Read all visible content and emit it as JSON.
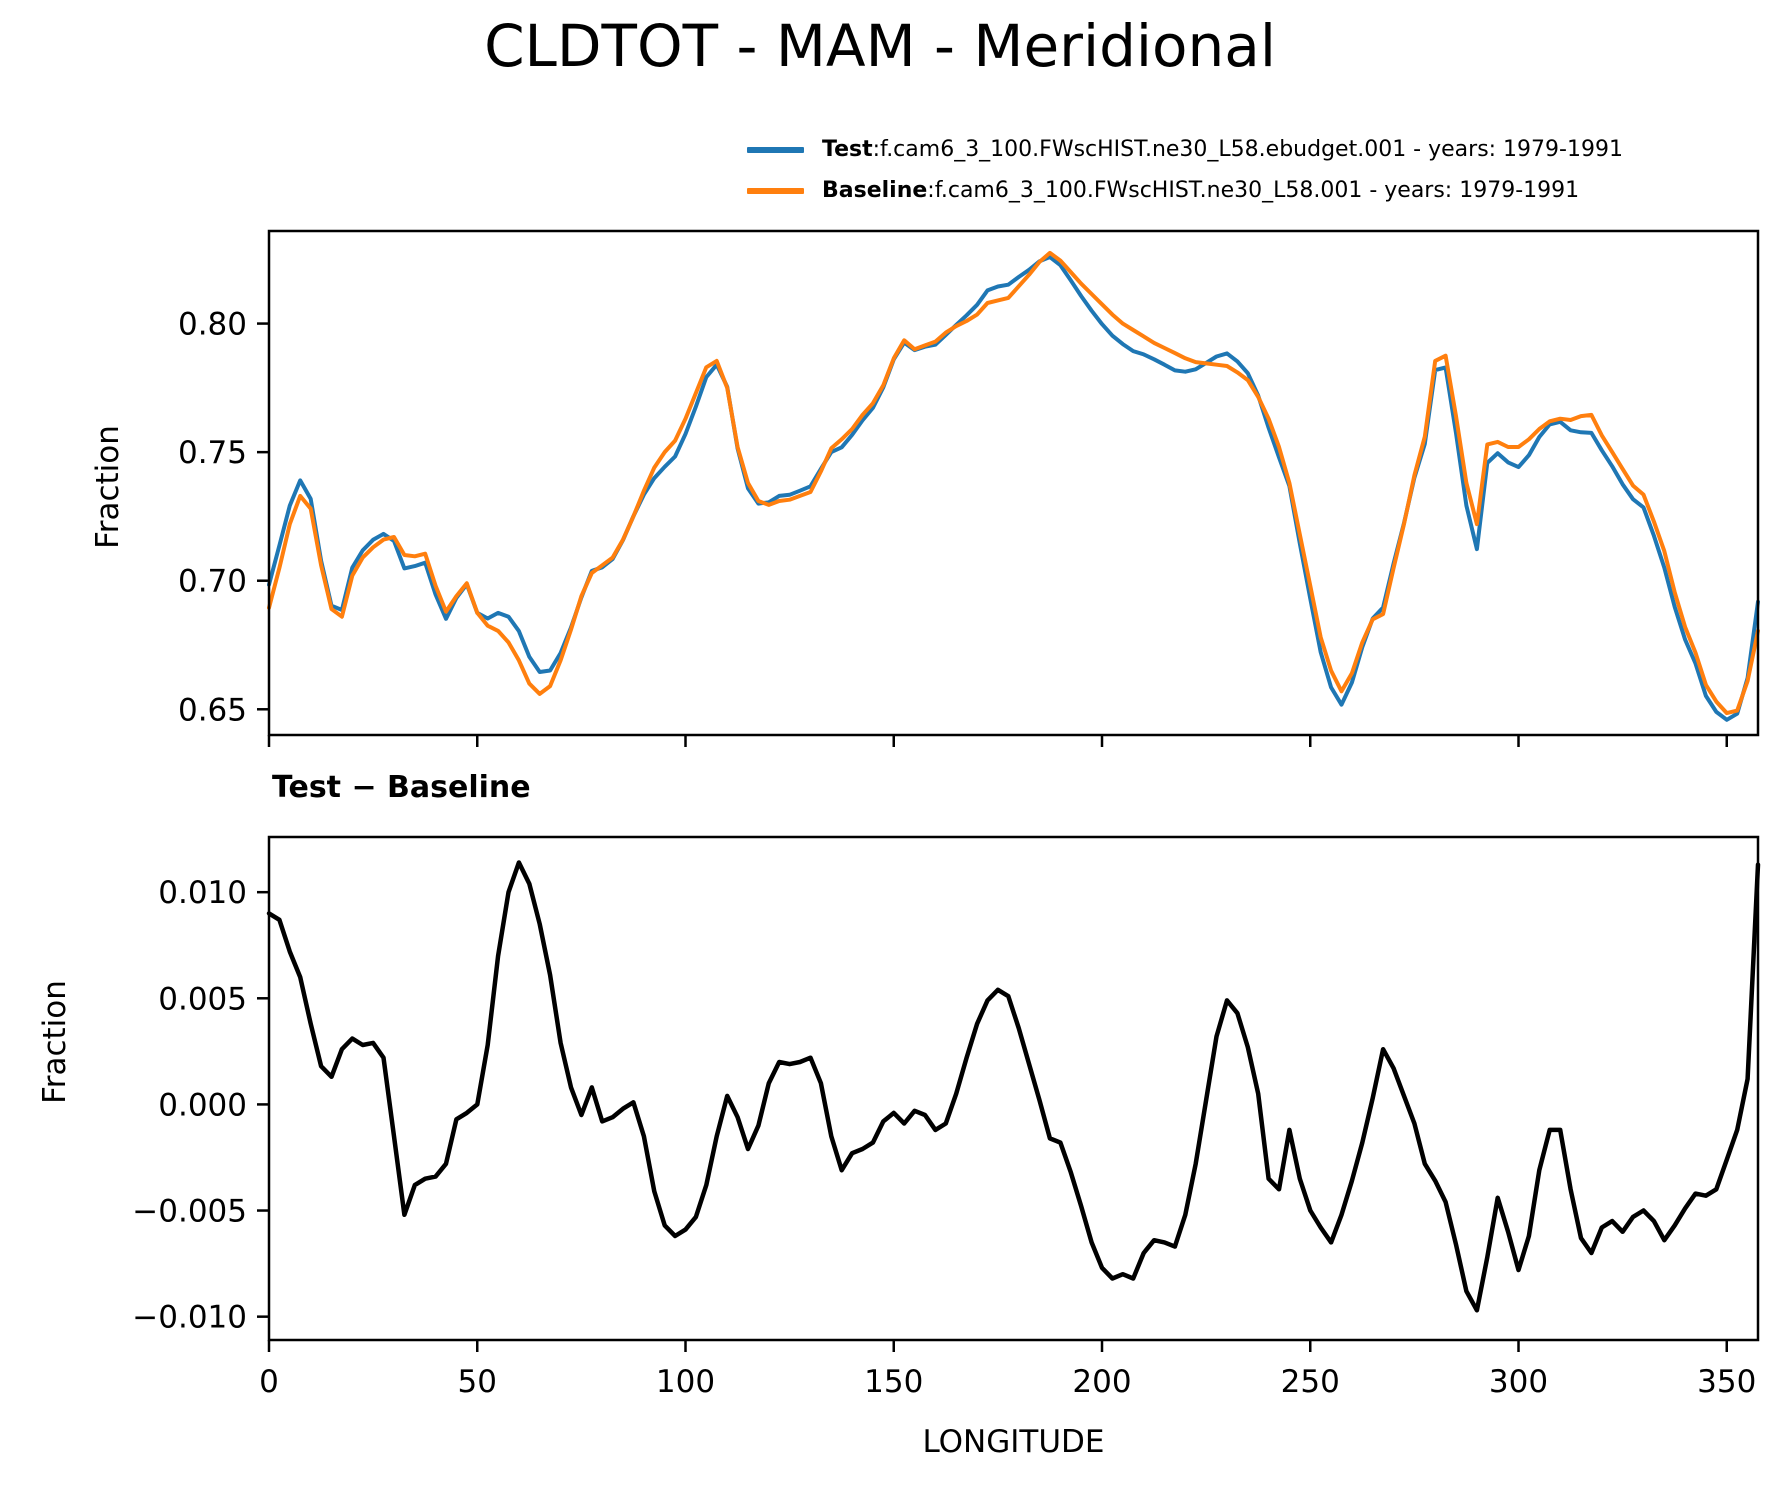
{
  "title": "CLDTOT - MAM - Meridional",
  "subtitle": "Test − Baseline",
  "legend": {
    "items": [
      {
        "label": "Test",
        "sep": " : ",
        "desc": "f.cam6_3_100.FWscHIST.ne30_L58.ebudget.001 - years: 1979-1991",
        "color": "#1f77b4"
      },
      {
        "label": "Baseline",
        "sep": " : ",
        "desc": "f.cam6_3_100.FWscHIST.ne30_L58.001 - years: 1979-1991",
        "color": "#ff7f0e"
      }
    ]
  },
  "colors": {
    "test": "#1f77b4",
    "baseline": "#ff7f0e",
    "difference": "#000000",
    "frame": "#000000"
  },
  "chart_data": [
    {
      "type": "line",
      "title": "CLDTOT - MAM - Meridional",
      "xlabel": "",
      "ylabel": "Fraction",
      "grid": false,
      "legend_position": "above-top-right",
      "xlim": [
        0,
        357.5
      ],
      "ylim": [
        0.64,
        0.836
      ],
      "xticks": [
        0,
        50,
        100,
        150,
        200,
        250,
        300,
        350
      ],
      "xtick_labels": [],
      "yticks": [
        0.65,
        0.7,
        0.75,
        0.8
      ],
      "ytick_labels": [
        "0.65",
        "0.70",
        "0.75",
        "0.80"
      ],
      "x": [
        0,
        2.5,
        5,
        7.5,
        10,
        12.5,
        15,
        17.5,
        20,
        22.5,
        25,
        27.5,
        30,
        32.5,
        35,
        37.5,
        40,
        42.5,
        45,
        47.5,
        50,
        52.5,
        55,
        57.5,
        60,
        62.5,
        65,
        67.5,
        70,
        72.5,
        75,
        77.5,
        80,
        82.5,
        85,
        87.5,
        90,
        92.5,
        95,
        97.5,
        100,
        102.5,
        105,
        107.5,
        110,
        112.5,
        115,
        117.5,
        120,
        122.5,
        125,
        127.5,
        130,
        132.5,
        135,
        137.5,
        140,
        142.5,
        145,
        147.5,
        150,
        152.5,
        155,
        157.5,
        160,
        162.5,
        165,
        167.5,
        170,
        172.5,
        175,
        177.5,
        180,
        182.5,
        185,
        187.5,
        190,
        192.5,
        195,
        197.5,
        200,
        202.5,
        205,
        207.5,
        210,
        212.5,
        215,
        217.5,
        220,
        222.5,
        225,
        227.5,
        230,
        232.5,
        235,
        237.5,
        240,
        242.5,
        245,
        247.5,
        250,
        252.5,
        255,
        257.5,
        260,
        262.5,
        265,
        267.5,
        270,
        272.5,
        275,
        277.5,
        280,
        282.5,
        285,
        287.5,
        290,
        292.5,
        295,
        297.5,
        300,
        302.5,
        305,
        307.5,
        310,
        312.5,
        315,
        317.5,
        320,
        322.5,
        325,
        327.5,
        330,
        332.5,
        335,
        337.5,
        340,
        342.5,
        345,
        347.5,
        350,
        352.5,
        355,
        357.5
      ],
      "series": [
        {
          "name": "Test",
          "color": "#1f77b4",
          "values": [
            0.6985,
            0.7137,
            0.7292,
            0.739,
            0.7318,
            0.7078,
            0.6903,
            0.6886,
            0.7051,
            0.7118,
            0.7159,
            0.7182,
            0.7155,
            0.7048,
            0.7057,
            0.707,
            0.6946,
            0.6852,
            0.6933,
            0.6986,
            0.6875,
            0.6853,
            0.6875,
            0.686,
            0.6804,
            0.6704,
            0.6645,
            0.6651,
            0.6719,
            0.6818,
            0.6935,
            0.7038,
            0.7052,
            0.7084,
            0.7158,
            0.7251,
            0.7335,
            0.7399,
            0.7443,
            0.7483,
            0.7571,
            0.7677,
            0.7792,
            0.784,
            0.7754,
            0.7514,
            0.7359,
            0.73,
            0.7305,
            0.733,
            0.7334,
            0.735,
            0.7367,
            0.7435,
            0.75,
            0.7519,
            0.7567,
            0.7624,
            0.7672,
            0.7752,
            0.7861,
            0.7926,
            0.7897,
            0.791,
            0.7918,
            0.7956,
            0.7995,
            0.8032,
            0.8073,
            0.8129,
            0.8144,
            0.8151,
            0.8181,
            0.8209,
            0.8242,
            0.8259,
            0.8227,
            0.8168,
            0.8107,
            0.805,
            0.7998,
            0.7953,
            0.792,
            0.7893,
            0.788,
            0.7861,
            0.784,
            0.7818,
            0.7813,
            0.7822,
            0.7847,
            0.7872,
            0.7884,
            0.7853,
            0.7807,
            0.772,
            0.7595,
            0.748,
            0.7368,
            0.7145,
            0.693,
            0.6722,
            0.6585,
            0.6518,
            0.6604,
            0.6742,
            0.6853,
            0.6896,
            0.7067,
            0.7224,
            0.7401,
            0.7532,
            0.7819,
            0.7829,
            0.7574,
            0.7292,
            0.7123,
            0.7458,
            0.7496,
            0.746,
            0.7442,
            0.7488,
            0.7559,
            0.7608,
            0.7618,
            0.7585,
            0.7577,
            0.7575,
            0.7507,
            0.7445,
            0.7375,
            0.7317,
            0.7285,
            0.7175,
            0.7051,
            0.6898,
            0.6771,
            0.6678,
            0.6552,
            0.649,
            0.6459,
            0.6483,
            0.6622,
            0.6918
          ]
        },
        {
          "name": "Baseline",
          "color": "#ff7f0e",
          "values": [
            0.6895,
            0.705,
            0.722,
            0.733,
            0.728,
            0.706,
            0.689,
            0.686,
            0.702,
            0.709,
            0.713,
            0.716,
            0.717,
            0.71,
            0.7095,
            0.7105,
            0.698,
            0.688,
            0.694,
            0.699,
            0.6875,
            0.6825,
            0.6805,
            0.676,
            0.669,
            0.66,
            0.656,
            0.659,
            0.669,
            0.681,
            0.694,
            0.703,
            0.706,
            0.709,
            0.716,
            0.725,
            0.735,
            0.744,
            0.75,
            0.7545,
            0.763,
            0.773,
            0.783,
            0.7855,
            0.775,
            0.752,
            0.738,
            0.731,
            0.7295,
            0.731,
            0.7315,
            0.733,
            0.7345,
            0.7425,
            0.7515,
            0.755,
            0.759,
            0.7645,
            0.769,
            0.776,
            0.7865,
            0.7935,
            0.79,
            0.7915,
            0.793,
            0.7965,
            0.799,
            0.801,
            0.8035,
            0.808,
            0.809,
            0.81,
            0.8145,
            0.819,
            0.824,
            0.8275,
            0.8245,
            0.82,
            0.8155,
            0.8115,
            0.8075,
            0.8035,
            0.8,
            0.7975,
            0.795,
            0.7925,
            0.7905,
            0.7885,
            0.7865,
            0.785,
            0.7845,
            0.784,
            0.7835,
            0.781,
            0.778,
            0.7715,
            0.763,
            0.752,
            0.738,
            0.718,
            0.698,
            0.678,
            0.665,
            0.657,
            0.664,
            0.676,
            0.685,
            0.687,
            0.705,
            0.722,
            0.741,
            0.756,
            0.7855,
            0.7875,
            0.764,
            0.738,
            0.722,
            0.753,
            0.754,
            0.752,
            0.752,
            0.755,
            0.759,
            0.762,
            0.763,
            0.7625,
            0.764,
            0.7645,
            0.7565,
            0.75,
            0.7435,
            0.737,
            0.7335,
            0.723,
            0.7115,
            0.6955,
            0.682,
            0.672,
            0.6595,
            0.653,
            0.6485,
            0.6495,
            0.661,
            0.6805
          ]
        }
      ]
    },
    {
      "type": "line",
      "title": "Test − Baseline",
      "xlabel": "LONGITUDE",
      "ylabel": "Fraction",
      "grid": false,
      "xlim": [
        0,
        357.5
      ],
      "ylim": [
        -0.0111,
        0.0126
      ],
      "xticks": [
        0,
        50,
        100,
        150,
        200,
        250,
        300,
        350
      ],
      "xtick_labels": [
        "0",
        "50",
        "100",
        "150",
        "200",
        "250",
        "300",
        "350"
      ],
      "yticks": [
        -0.01,
        -0.005,
        0.0,
        0.005,
        0.01
      ],
      "ytick_labels": [
        "−0.010",
        "−0.005",
        "0.000",
        "0.005",
        "0.010"
      ],
      "x": [
        0,
        2.5,
        5,
        7.5,
        10,
        12.5,
        15,
        17.5,
        20,
        22.5,
        25,
        27.5,
        30,
        32.5,
        35,
        37.5,
        40,
        42.5,
        45,
        47.5,
        50,
        52.5,
        55,
        57.5,
        60,
        62.5,
        65,
        67.5,
        70,
        72.5,
        75,
        77.5,
        80,
        82.5,
        85,
        87.5,
        90,
        92.5,
        95,
        97.5,
        100,
        102.5,
        105,
        107.5,
        110,
        112.5,
        115,
        117.5,
        120,
        122.5,
        125,
        127.5,
        130,
        132.5,
        135,
        137.5,
        140,
        142.5,
        145,
        147.5,
        150,
        152.5,
        155,
        157.5,
        160,
        162.5,
        165,
        167.5,
        170,
        172.5,
        175,
        177.5,
        180,
        182.5,
        185,
        187.5,
        190,
        192.5,
        195,
        197.5,
        200,
        202.5,
        205,
        207.5,
        210,
        212.5,
        215,
        217.5,
        220,
        222.5,
        225,
        227.5,
        230,
        232.5,
        235,
        237.5,
        240,
        242.5,
        245,
        247.5,
        250,
        252.5,
        255,
        257.5,
        260,
        262.5,
        265,
        267.5,
        270,
        272.5,
        275,
        277.5,
        280,
        282.5,
        285,
        287.5,
        290,
        292.5,
        295,
        297.5,
        300,
        302.5,
        305,
        307.5,
        310,
        312.5,
        315,
        317.5,
        320,
        322.5,
        325,
        327.5,
        330,
        332.5,
        335,
        337.5,
        340,
        342.5,
        345,
        347.5,
        350,
        352.5,
        355,
        357.5
      ],
      "series": [
        {
          "name": "Test − Baseline",
          "color": "#000000",
          "values": [
            0.009,
            0.0087,
            0.0072,
            0.006,
            0.0038,
            0.0018,
            0.0013,
            0.0026,
            0.0031,
            0.0028,
            0.0029,
            0.0022,
            -0.0015,
            -0.0052,
            -0.0038,
            -0.0035,
            -0.0034,
            -0.0028,
            -0.0007,
            -0.0004,
            0.0,
            0.0028,
            0.007,
            0.01,
            0.0114,
            0.0104,
            0.0085,
            0.0061,
            0.0029,
            0.0008,
            -0.0005,
            0.0008,
            -0.0008,
            -0.0006,
            -0.0002,
            0.0001,
            -0.0015,
            -0.0041,
            -0.0057,
            -0.0062,
            -0.0059,
            -0.0053,
            -0.0038,
            -0.0015,
            0.0004,
            -0.0006,
            -0.0021,
            -0.001,
            0.001,
            0.002,
            0.0019,
            0.002,
            0.0022,
            0.001,
            -0.0015,
            -0.0031,
            -0.0023,
            -0.0021,
            -0.0018,
            -0.0008,
            -0.0004,
            -0.0009,
            -0.0003,
            -0.0005,
            -0.0012,
            -0.0009,
            0.0005,
            0.0022,
            0.0038,
            0.0049,
            0.0054,
            0.0051,
            0.0036,
            0.0019,
            0.0002,
            -0.0016,
            -0.0018,
            -0.0032,
            -0.0048,
            -0.0065,
            -0.0077,
            -0.0082,
            -0.008,
            -0.0082,
            -0.007,
            -0.0064,
            -0.0065,
            -0.0067,
            -0.0052,
            -0.0028,
            0.0002,
            0.0032,
            0.0049,
            0.0043,
            0.0027,
            0.0005,
            -0.0035,
            -0.004,
            -0.0012,
            -0.0035,
            -0.005,
            -0.0058,
            -0.0065,
            -0.0052,
            -0.0036,
            -0.0018,
            0.0003,
            0.0026,
            0.0017,
            0.0004,
            -0.0009,
            -0.0028,
            -0.0036,
            -0.0046,
            -0.0066,
            -0.0088,
            -0.0097,
            -0.0072,
            -0.0044,
            -0.006,
            -0.0078,
            -0.0062,
            -0.0031,
            -0.0012,
            -0.0012,
            -0.004,
            -0.0063,
            -0.007,
            -0.0058,
            -0.0055,
            -0.006,
            -0.0053,
            -0.005,
            -0.0055,
            -0.0064,
            -0.0057,
            -0.0049,
            -0.0042,
            -0.0043,
            -0.004,
            -0.0026,
            -0.0012,
            0.0012,
            0.0113
          ]
        }
      ]
    }
  ]
}
